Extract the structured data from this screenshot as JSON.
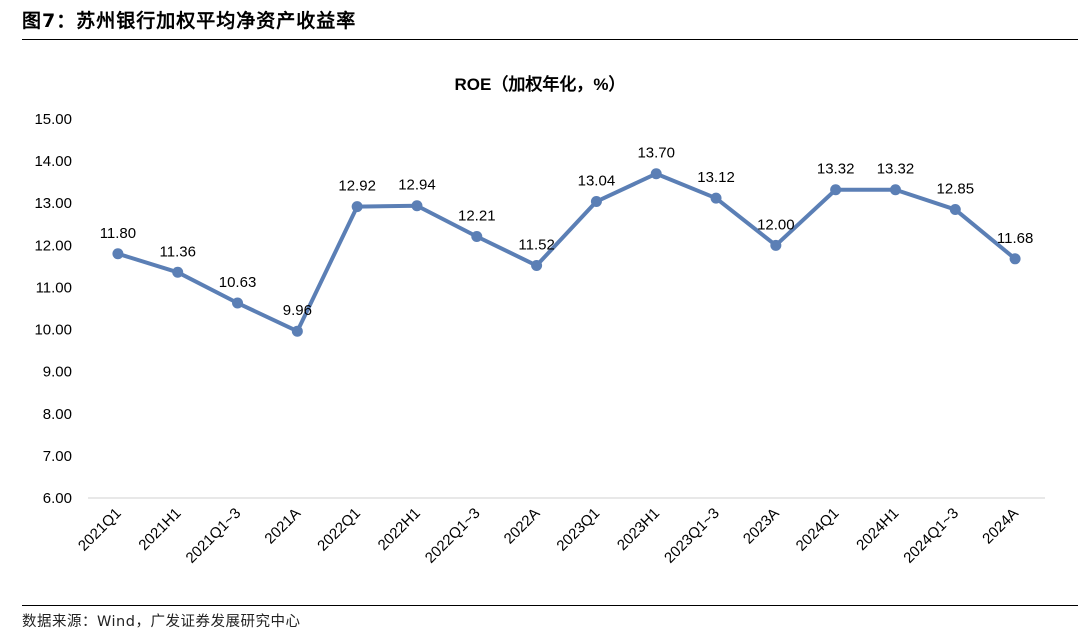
{
  "figure": {
    "title": "图7：苏州银行加权平均净资产收益率",
    "source": "数据来源：Wind，广发证券发展研究中心"
  },
  "chart_data": {
    "type": "line",
    "title": "ROE（加权年化，%）",
    "xlabel": "",
    "ylabel": "",
    "categories": [
      "2021Q1",
      "2021H1",
      "2021Q1~3",
      "2021A",
      "2022Q1",
      "2022H1",
      "2022Q1~3",
      "2022A",
      "2023Q1",
      "2023H1",
      "2023Q1~3",
      "2023A",
      "2024Q1",
      "2024H1",
      "2024Q1~3",
      "2024A"
    ],
    "values": [
      11.8,
      11.36,
      10.63,
      9.96,
      12.92,
      12.94,
      12.21,
      11.52,
      13.04,
      13.7,
      13.12,
      12.0,
      13.32,
      13.32,
      12.85,
      11.68
    ],
    "data_labels": [
      "11.80",
      "11.36",
      "10.63",
      "9.96",
      "12.92",
      "12.94",
      "12.21",
      "11.52",
      "13.04",
      "13.70",
      "13.12",
      "12.00",
      "13.32",
      "13.32",
      "12.85",
      "11.68"
    ],
    "yticks": [
      "6.00",
      "7.00",
      "8.00",
      "9.00",
      "10.00",
      "11.00",
      "12.00",
      "13.00",
      "14.00",
      "15.00"
    ],
    "ylim": [
      6,
      15
    ],
    "grid": false,
    "line_color": "#5b7fb5"
  }
}
